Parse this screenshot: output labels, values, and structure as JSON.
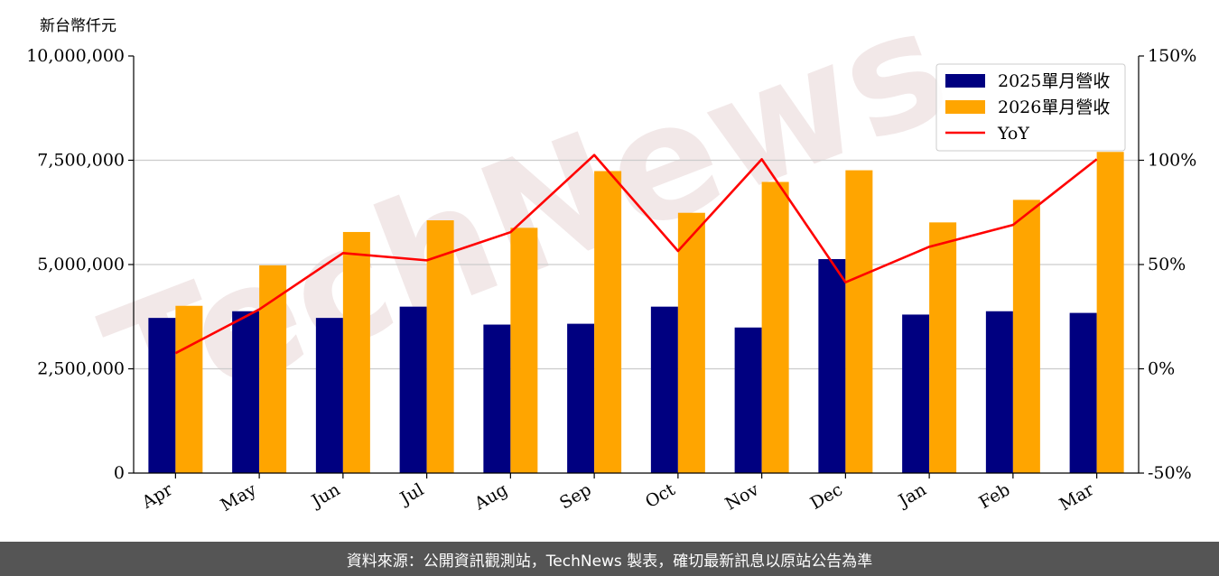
{
  "unit_label": "新台幣仟元",
  "watermark": "TechNews",
  "footer": "資料來源：公開資訊觀測站，TechNews 製表，確切最新訊息以原站公告為準",
  "colors": {
    "series_2025": "#000080",
    "series_2026": "#FFA500",
    "yoy": "#FF0000"
  },
  "chart_data": {
    "type": "bar",
    "categories": [
      "Apr",
      "May",
      "Jun",
      "Jul",
      "Aug",
      "Sep",
      "Oct",
      "Nov",
      "Dec",
      "Jan",
      "Feb",
      "Mar"
    ],
    "series": [
      {
        "name": "2025單月營收",
        "type": "bar",
        "axis": "left",
        "values": [
          3720000,
          3880000,
          3720000,
          3990000,
          3560000,
          3580000,
          3990000,
          3490000,
          5130000,
          3800000,
          3880000,
          3840000
        ]
      },
      {
        "name": "2026單月營收",
        "type": "bar",
        "axis": "left",
        "values": [
          4010000,
          4980000,
          5780000,
          6060000,
          5880000,
          7240000,
          6240000,
          6980000,
          7260000,
          6010000,
          6550000,
          7700000
        ]
      },
      {
        "name": "YoY",
        "type": "line",
        "axis": "right",
        "values": [
          7.5,
          28.5,
          55.5,
          52.0,
          65.5,
          102.5,
          56.5,
          100.5,
          41.5,
          58.5,
          69.0,
          100.5
        ]
      }
    ],
    "ylim": [
      0,
      10000000
    ],
    "y_ticks": [
      "0",
      "2,500,000",
      "5,000,000",
      "7,500,000",
      "10,000,000"
    ],
    "y2lim": [
      -50,
      150
    ],
    "y2_ticks": [
      "-50%",
      "0%",
      "50%",
      "100%",
      "150%"
    ],
    "grid": "horizontal",
    "legend": "top-right"
  }
}
